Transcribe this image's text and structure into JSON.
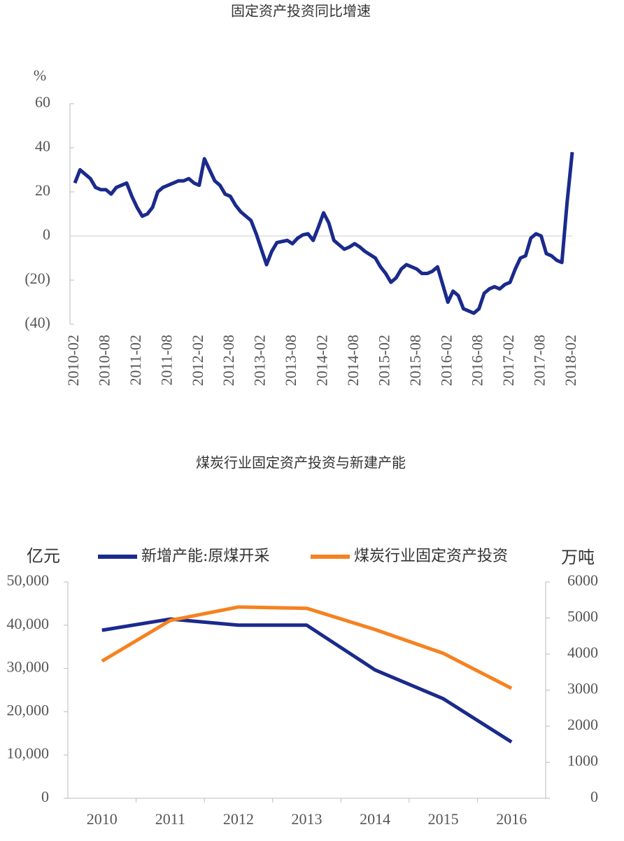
{
  "chart_data": [
    {
      "type": "line",
      "title": "固定资产投资同比增速",
      "y_unit_label": "%",
      "categories": [
        "2010-02",
        null,
        null,
        null,
        null,
        null,
        "2010-08",
        null,
        null,
        null,
        null,
        null,
        "2011-02",
        null,
        null,
        null,
        null,
        null,
        "2011-08",
        null,
        null,
        null,
        null,
        null,
        "2012-02",
        null,
        null,
        null,
        null,
        null,
        "2012-08",
        null,
        null,
        null,
        null,
        null,
        "2013-02",
        null,
        null,
        null,
        null,
        null,
        "2013-08",
        null,
        null,
        null,
        null,
        null,
        "2014-02",
        null,
        null,
        null,
        null,
        null,
        "2014-08",
        null,
        null,
        null,
        null,
        null,
        "2015-02",
        null,
        null,
        null,
        null,
        null,
        "2015-08",
        null,
        null,
        null,
        null,
        null,
        "2016-02",
        null,
        null,
        null,
        null,
        null,
        "2016-08",
        null,
        null,
        null,
        null,
        null,
        "2017-02",
        null,
        null,
        null,
        null,
        null,
        "2017-08",
        null,
        null,
        null,
        null,
        null,
        "2018-02"
      ],
      "values": [
        24,
        30,
        28,
        26,
        22,
        21,
        21,
        19,
        22,
        23,
        24,
        18,
        13,
        9,
        10,
        13,
        20,
        22,
        23,
        24,
        25,
        25,
        26,
        24,
        23,
        35,
        30,
        25,
        23,
        19,
        18,
        14,
        11,
        9,
        7,
        1,
        -6,
        -13,
        -7,
        -3,
        -2.5,
        -2,
        -3.5,
        -1,
        0.5,
        1,
        -2,
        4,
        10.5,
        6,
        -2,
        -4,
        -6,
        -5,
        -3.5,
        -5,
        -7,
        -8.5,
        -10,
        -14,
        -17,
        -21,
        -19,
        -15,
        -13,
        -14,
        -15,
        -17,
        -17,
        -16,
        -14,
        -22,
        -30,
        -25,
        -27,
        -33,
        -34,
        -35,
        -33,
        -26,
        -24,
        -23,
        -24,
        -22,
        -21,
        -15,
        -10,
        -9,
        -1,
        1,
        0,
        -8,
        -9,
        -11,
        -12,
        15,
        38
      ],
      "color": "#1a2a8c",
      "negative_tick_color": "#e8202a",
      "ylim": [
        -40,
        60
      ],
      "yticks": [
        60,
        40,
        20,
        0,
        {
          "value": -20,
          "label": "(20)"
        },
        {
          "value": -40,
          "label": "(40)"
        }
      ]
    },
    {
      "type": "line",
      "title": "煤炭行业固定资产投资与新建产能",
      "y_label": "亿元",
      "y2_label": "万吨",
      "categories": [
        "2010",
        "2011",
        "2012",
        "2013",
        "2014",
        "2015",
        "2016"
      ],
      "series": [
        {
          "name": "新增产能:原煤开采",
          "color": "#1a2a8c",
          "axis": "y2",
          "values": [
            4660,
            4970,
            4800,
            4800,
            3560,
            2760,
            1560
          ]
        },
        {
          "name": "煤炭行业固定资产投资",
          "color": "#f58220",
          "values": [
            31700,
            41100,
            44200,
            43900,
            39000,
            33500,
            25400
          ]
        }
      ],
      "ylim": [
        0,
        50000
      ],
      "yticks": [
        0,
        {
          "value": 10000,
          "label": "10,000"
        },
        {
          "value": 20000,
          "label": "20,000"
        },
        {
          "value": 30000,
          "label": "30,000"
        },
        {
          "value": 40000,
          "label": "40,000"
        },
        {
          "value": 50000,
          "label": "50,000"
        }
      ],
      "y2lim": [
        0,
        6000
      ],
      "y2ticks": [
        0,
        1000,
        2000,
        3000,
        4000,
        5000,
        6000
      ],
      "legend": "top"
    }
  ]
}
